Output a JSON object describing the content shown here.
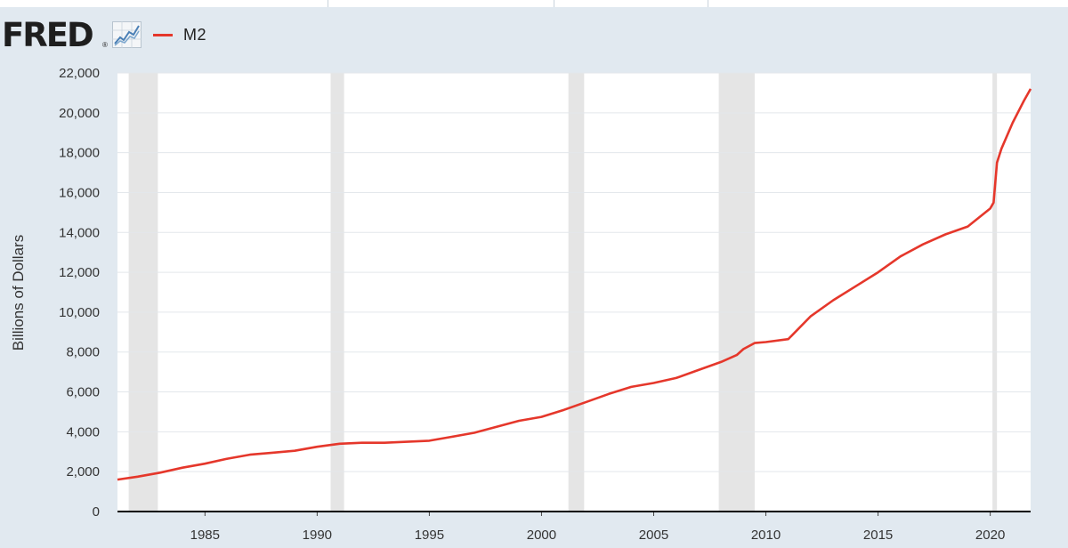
{
  "brand": "FRED",
  "brand_mark": "®",
  "chart_data": {
    "type": "line",
    "ylabel": "Billions of Dollars",
    "xlim": [
      1981.1,
      2021.8
    ],
    "ylim": [
      0,
      22000
    ],
    "yticks": [
      0,
      2000,
      4000,
      6000,
      8000,
      10000,
      12000,
      14000,
      16000,
      18000,
      20000,
      22000
    ],
    "ytick_labels": [
      "0",
      "2,000",
      "4,000",
      "6,000",
      "8,000",
      "10,000",
      "12,000",
      "14,000",
      "16,000",
      "18,000",
      "20,000",
      "22,000"
    ],
    "xticks": [
      1985,
      1990,
      1995,
      2000,
      2005,
      2010,
      2015,
      2020
    ],
    "xtick_labels": [
      "1985",
      "1990",
      "1995",
      "2000",
      "2005",
      "2010",
      "2015",
      "2020"
    ],
    "grid": true,
    "legend_position": "top-left",
    "recessions": [
      [
        1981.6,
        1982.9
      ],
      [
        1990.6,
        1991.2
      ],
      [
        2001.2,
        2001.9
      ],
      [
        2007.9,
        2009.5
      ],
      [
        2020.1,
        2020.3
      ]
    ],
    "series": [
      {
        "name": "M2",
        "color": "#e5372b",
        "x": [
          1981.1,
          1982.0,
          1983.0,
          1984.0,
          1985.0,
          1986.0,
          1987.0,
          1988.0,
          1989.0,
          1990.0,
          1991.0,
          1992.0,
          1993.0,
          1994.0,
          1995.0,
          1996.0,
          1997.0,
          1998.0,
          1999.0,
          2000.0,
          2001.0,
          2002.0,
          2003.0,
          2004.0,
          2005.0,
          2006.0,
          2007.0,
          2008.0,
          2008.7,
          2009.0,
          2009.5,
          2010.0,
          2011.0,
          2012.0,
          2013.0,
          2014.0,
          2015.0,
          2016.0,
          2017.0,
          2018.0,
          2019.0,
          2020.0,
          2020.15,
          2020.3,
          2020.5,
          2021.0,
          2021.5,
          2021.8
        ],
        "values": [
          1600,
          1750,
          1950,
          2200,
          2400,
          2650,
          2850,
          2950,
          3050,
          3250,
          3400,
          3450,
          3450,
          3500,
          3550,
          3750,
          3950,
          4250,
          4550,
          4750,
          5100,
          5500,
          5900,
          6250,
          6450,
          6700,
          7100,
          7500,
          7850,
          8150,
          8450,
          8500,
          8650,
          9800,
          10600,
          11300,
          12000,
          12800,
          13400,
          13900,
          14300,
          15200,
          15500,
          17500,
          18200,
          19500,
          20600,
          21200
        ]
      }
    ]
  }
}
